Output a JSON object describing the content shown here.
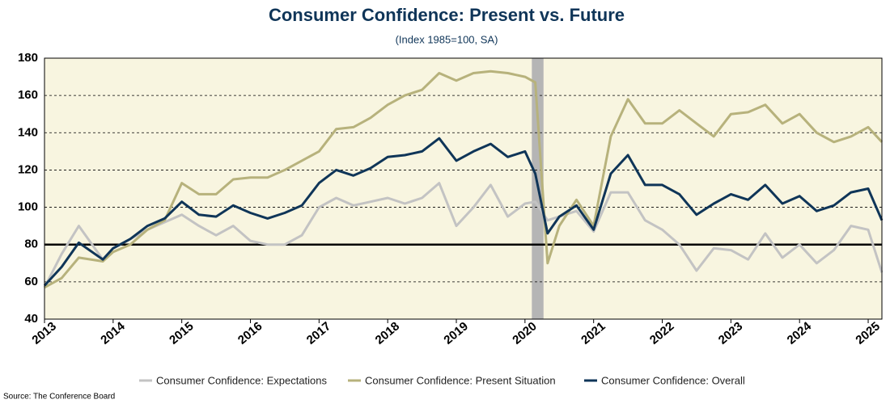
{
  "chart_data": {
    "type": "line",
    "title": "Consumer Confidence: Present vs. Future",
    "subtitle": "(Index 1985=100, SA)",
    "source": "Source: The Conference Board",
    "x": [
      2013.0,
      2013.25,
      2013.5,
      2013.85,
      2014.0,
      2014.25,
      2014.5,
      2014.75,
      2015.0,
      2015.25,
      2015.5,
      2015.75,
      2016.0,
      2016.25,
      2016.5,
      2016.75,
      2017.0,
      2017.25,
      2017.5,
      2017.75,
      2018.0,
      2018.25,
      2018.5,
      2018.75,
      2019.0,
      2019.25,
      2019.5,
      2019.75,
      2020.0,
      2020.15,
      2020.33,
      2020.5,
      2020.75,
      2021.0,
      2021.25,
      2021.5,
      2021.75,
      2022.0,
      2022.25,
      2022.5,
      2022.75,
      2023.0,
      2023.25,
      2023.5,
      2023.75,
      2024.0,
      2024.25,
      2024.5,
      2024.75,
      2025.0,
      2025.2
    ],
    "series": [
      {
        "name": "Consumer Confidence: Expectations",
        "color": "#c3c3c3",
        "width": 3,
        "values": [
          57,
          75,
          90,
          72,
          78,
          83,
          88,
          92,
          96,
          90,
          85,
          90,
          82,
          80,
          80,
          85,
          100,
          105,
          101,
          103,
          105,
          102,
          105,
          113,
          90,
          100,
          112,
          95,
          102,
          103,
          93,
          95,
          98,
          87,
          108,
          108,
          93,
          88,
          80,
          66,
          78,
          77,
          72,
          86,
          73,
          80,
          70,
          77,
          90,
          88,
          65
        ]
      },
      {
        "name": "Consumer Confidence: Present Situation",
        "color": "#b7b27c",
        "width": 3,
        "values": [
          57,
          62,
          73,
          71,
          76,
          80,
          88,
          93,
          113,
          107,
          107,
          115,
          116,
          116,
          120,
          125,
          130,
          142,
          143,
          148,
          155,
          160,
          163,
          172,
          168,
          172,
          173,
          172,
          170,
          167,
          70,
          90,
          104,
          90,
          138,
          158,
          145,
          145,
          152,
          145,
          138,
          150,
          151,
          155,
          145,
          150,
          140,
          135,
          138,
          143,
          135
        ]
      },
      {
        "name": "Consumer Confidence: Overall",
        "color": "#0f3558",
        "width": 3,
        "values": [
          58,
          68,
          81,
          72,
          78,
          83,
          90,
          94,
          103,
          96,
          95,
          101,
          97,
          94,
          97,
          101,
          113,
          120,
          117,
          121,
          127,
          128,
          130,
          137,
          125,
          130,
          134,
          127,
          130,
          118,
          86,
          95,
          101,
          88,
          118,
          128,
          112,
          112,
          107,
          96,
          102,
          107,
          104,
          112,
          102,
          106,
          98,
          101,
          108,
          110,
          93
        ]
      }
    ],
    "xlim": [
      2013,
      2025.2
    ],
    "xticks": [
      2013,
      2014,
      2015,
      2016,
      2017,
      2018,
      2019,
      2020,
      2021,
      2022,
      2023,
      2024,
      2025
    ],
    "ylim": [
      40,
      180
    ],
    "yticks": [
      40,
      60,
      80,
      100,
      120,
      140,
      160,
      180
    ],
    "grid": true,
    "hline": 80,
    "shaded_x": [
      2020.1,
      2020.27
    ],
    "legend": "bottom"
  }
}
